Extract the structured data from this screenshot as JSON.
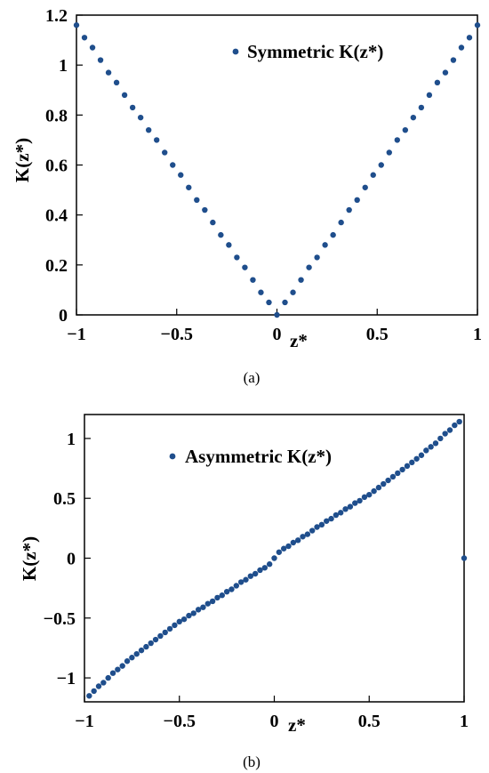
{
  "chart_data": [
    {
      "type": "scatter",
      "caption": "(a)",
      "xlabel": "z*",
      "ylabel": "K(z*)",
      "xlim": [
        -1,
        1
      ],
      "ylim": [
        0,
        1.2
      ],
      "xticks": [
        -1,
        -0.5,
        0,
        0.5,
        1
      ],
      "xtick_labels": [
        "−1",
        "−0.5",
        "0",
        "0.5",
        "1"
      ],
      "yticks": [
        0,
        0.2,
        0.4,
        0.6,
        0.8,
        1,
        1.2
      ],
      "ytick_labels": [
        "0",
        "0.2",
        "0.4",
        "0.6",
        "0.8",
        "1",
        "1.2"
      ],
      "legend_position": "top-right",
      "grid": false,
      "series": [
        {
          "name": "Symmetric K(z*)",
          "color": "#1f4e8c",
          "x": [
            -1.0,
            -0.96,
            -0.92,
            -0.88,
            -0.84,
            -0.8,
            -0.76,
            -0.72,
            -0.68,
            -0.64,
            -0.6,
            -0.56,
            -0.52,
            -0.48,
            -0.44,
            -0.4,
            -0.36,
            -0.32,
            -0.28,
            -0.24,
            -0.2,
            -0.16,
            -0.12,
            -0.08,
            -0.04,
            0.0,
            0.04,
            0.08,
            0.12,
            0.16,
            0.2,
            0.24,
            0.28,
            0.32,
            0.36,
            0.4,
            0.44,
            0.48,
            0.52,
            0.56,
            0.6,
            0.64,
            0.68,
            0.72,
            0.76,
            0.8,
            0.84,
            0.88,
            0.92,
            0.96,
            1.0
          ],
          "y": [
            1.16,
            1.11,
            1.07,
            1.02,
            0.97,
            0.93,
            0.88,
            0.83,
            0.79,
            0.74,
            0.7,
            0.65,
            0.6,
            0.56,
            0.51,
            0.46,
            0.42,
            0.37,
            0.32,
            0.28,
            0.23,
            0.19,
            0.14,
            0.09,
            0.05,
            0.0,
            0.05,
            0.09,
            0.14,
            0.19,
            0.23,
            0.28,
            0.32,
            0.37,
            0.42,
            0.46,
            0.51,
            0.56,
            0.6,
            0.65,
            0.7,
            0.74,
            0.79,
            0.83,
            0.88,
            0.93,
            0.97,
            1.02,
            1.07,
            1.11,
            1.16
          ]
        }
      ]
    },
    {
      "type": "scatter",
      "caption": "(b)",
      "xlabel": "z*",
      "ylabel": "K(z*)",
      "xlim": [
        -1,
        1
      ],
      "ylim": [
        -1.2,
        1.2
      ],
      "xticks": [
        -1,
        -0.5,
        0,
        0.5,
        1
      ],
      "xtick_labels": [
        "−1",
        "−0.5",
        "0",
        "0.5",
        "1"
      ],
      "yticks": [
        -1,
        -0.5,
        0,
        0.5,
        1
      ],
      "ytick_labels": [
        "−1",
        "−0.5",
        "0",
        "0.5",
        "1"
      ],
      "legend_position": "top-left",
      "grid": false,
      "series": [
        {
          "name": "Asymmetric K(z*)",
          "color": "#1f4e8c",
          "x": [
            -0.975,
            -0.95,
            -0.925,
            -0.9,
            -0.875,
            -0.85,
            -0.825,
            -0.8,
            -0.775,
            -0.75,
            -0.725,
            -0.7,
            -0.675,
            -0.65,
            -0.625,
            -0.6,
            -0.575,
            -0.55,
            -0.525,
            -0.5,
            -0.475,
            -0.45,
            -0.425,
            -0.4,
            -0.375,
            -0.35,
            -0.325,
            -0.3,
            -0.275,
            -0.25,
            -0.225,
            -0.2,
            -0.175,
            -0.15,
            -0.125,
            -0.1,
            -0.075,
            -0.05,
            -0.025,
            0.0,
            0.025,
            0.05,
            0.075,
            0.1,
            0.125,
            0.15,
            0.175,
            0.2,
            0.225,
            0.25,
            0.275,
            0.3,
            0.325,
            0.35,
            0.375,
            0.4,
            0.425,
            0.45,
            0.475,
            0.5,
            0.525,
            0.55,
            0.575,
            0.6,
            0.625,
            0.65,
            0.675,
            0.7,
            0.725,
            0.75,
            0.775,
            0.8,
            0.825,
            0.85,
            0.875,
            0.9,
            0.925,
            0.95,
            0.975,
            1.0
          ],
          "y": [
            -1.15,
            -1.11,
            -1.07,
            -1.04,
            -1.0,
            -0.96,
            -0.93,
            -0.9,
            -0.86,
            -0.83,
            -0.8,
            -0.77,
            -0.74,
            -0.71,
            -0.68,
            -0.65,
            -0.62,
            -0.59,
            -0.56,
            -0.53,
            -0.51,
            -0.48,
            -0.46,
            -0.43,
            -0.41,
            -0.38,
            -0.36,
            -0.33,
            -0.31,
            -0.28,
            -0.26,
            -0.23,
            -0.2,
            -0.18,
            -0.15,
            -0.13,
            -0.1,
            -0.08,
            -0.05,
            0.0,
            0.05,
            0.08,
            0.1,
            0.13,
            0.15,
            0.18,
            0.2,
            0.23,
            0.26,
            0.28,
            0.31,
            0.33,
            0.36,
            0.38,
            0.41,
            0.43,
            0.46,
            0.48,
            0.51,
            0.53,
            0.56,
            0.59,
            0.62,
            0.65,
            0.68,
            0.71,
            0.74,
            0.77,
            0.8,
            0.83,
            0.86,
            0.9,
            0.93,
            0.96,
            1.0,
            1.04,
            1.07,
            1.11,
            1.14,
            0.0
          ]
        }
      ]
    }
  ]
}
